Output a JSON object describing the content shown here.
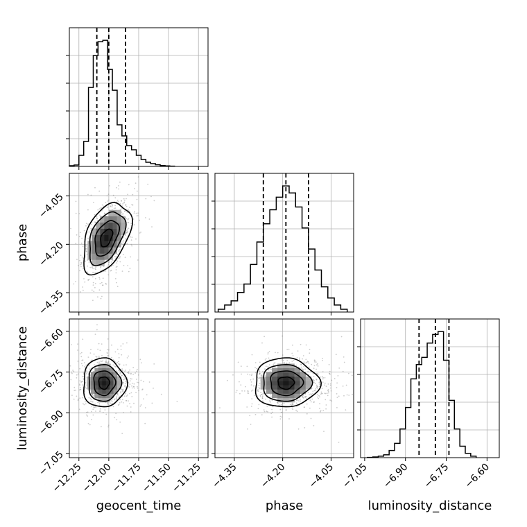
{
  "chart_data": {
    "type": "corner",
    "parameters": [
      "geocent_time",
      "phase",
      "luminosity_distance"
    ],
    "axis_labels": {
      "x": [
        "geocent_time",
        "phase",
        "luminosity_distance"
      ],
      "y": [
        "phase",
        "luminosity_distance"
      ]
    },
    "ranges": {
      "geocent_time": [
        -12.33,
        -11.17
      ],
      "phase": [
        -4.41,
        -3.98
      ],
      "luminosity_distance": [
        -7.065,
        -6.555
      ]
    },
    "ticks": {
      "geocent_time": [
        "−12.25",
        "−12.00",
        "−11.75",
        "−11.50",
        "−11.25"
      ],
      "geocent_time_values": [
        -12.25,
        -12.0,
        -11.75,
        -11.5,
        -11.25
      ],
      "phase": [
        "−4.35",
        "−4.20",
        "−4.05"
      ],
      "phase_values": [
        -4.35,
        -4.2,
        -4.05
      ],
      "luminosity_distance": [
        "−7.05",
        "−6.90",
        "−6.75",
        "−6.60"
      ],
      "luminosity_distance_values": [
        -7.05,
        -6.9,
        -6.75,
        -6.6
      ]
    },
    "quantiles": {
      "geocent_time": [
        -12.1,
        -12.0,
        -11.86
      ],
      "phase": [
        -4.26,
        -4.19,
        -4.12
      ],
      "luminosity_distance": [
        -6.85,
        -6.79,
        -6.74
      ]
    },
    "histograms": {
      "geocent_time": {
        "bin_edges": [
          -12.33,
          -12.29,
          -12.25,
          -12.21,
          -12.17,
          -12.13,
          -12.09,
          -12.05,
          -12.01,
          -11.97,
          -11.93,
          -11.89,
          -11.85,
          -11.81,
          -11.77,
          -11.73,
          -11.69,
          -11.65,
          -11.61,
          -11.57,
          -11.53,
          -11.49,
          -11.45
        ],
        "counts": [
          0.005,
          0.01,
          0.08,
          0.18,
          0.57,
          0.8,
          0.9,
          0.91,
          0.7,
          0.55,
          0.3,
          0.22,
          0.15,
          0.12,
          0.08,
          0.05,
          0.03,
          0.02,
          0.012,
          0.006,
          0.004,
          0.002
        ]
      },
      "phase": {
        "bin_edges": [
          -4.4,
          -4.38,
          -4.36,
          -4.34,
          -4.32,
          -4.3,
          -4.28,
          -4.26,
          -4.24,
          -4.22,
          -4.2,
          -4.18,
          -4.16,
          -4.14,
          -4.12,
          -4.1,
          -4.08,
          -4.06,
          -4.04,
          -4.02,
          -4.0
        ],
        "counts": [
          0.02,
          0.05,
          0.08,
          0.14,
          0.2,
          0.34,
          0.5,
          0.63,
          0.73,
          0.82,
          0.9,
          0.85,
          0.75,
          0.6,
          0.45,
          0.3,
          0.18,
          0.1,
          0.05,
          0.02
        ]
      },
      "luminosity_distance": {
        "bin_edges": [
          -7.04,
          -7.02,
          -7.0,
          -6.98,
          -6.96,
          -6.94,
          -6.92,
          -6.9,
          -6.88,
          -6.86,
          -6.84,
          -6.82,
          -6.8,
          -6.78,
          -6.76,
          -6.74,
          -6.72,
          -6.7,
          -6.68,
          -6.66,
          -6.64
        ],
        "counts": [
          0.002,
          0.005,
          0.01,
          0.02,
          0.05,
          0.1,
          0.2,
          0.35,
          0.55,
          0.65,
          0.7,
          0.8,
          0.86,
          0.88,
          0.68,
          0.4,
          0.2,
          0.08,
          0.03,
          0.01
        ]
      }
    },
    "joint": {
      "phase_vs_geocent_time": {
        "x_param": "geocent_time",
        "y_param": "phase",
        "mean": [
          -12.02,
          -4.18
        ],
        "std": [
          0.1,
          0.055
        ],
        "correlation": 0.45,
        "peak": [
          -12.05,
          -4.19
        ]
      },
      "luminosity_distance_vs_geocent_time": {
        "x_param": "geocent_time",
        "y_param": "luminosity_distance",
        "mean": [
          -12.04,
          -6.79
        ],
        "std": [
          0.09,
          0.045
        ],
        "correlation": 0.0,
        "peak": [
          -12.07,
          -6.79
        ]
      },
      "luminosity_distance_vs_phase": {
        "x_param": "phase",
        "y_param": "luminosity_distance",
        "mean": [
          -4.19,
          -6.79
        ],
        "std": [
          0.05,
          0.045
        ],
        "correlation": 0.0,
        "peak": [
          -4.2,
          -6.79
        ]
      }
    },
    "contour_levels_sigma": [
      0.5,
      1.0,
      1.5,
      2.0
    ],
    "grid": true,
    "colors": {
      "histogram": "#000000",
      "contour": "#000000",
      "points": "#8c8c8c",
      "grid": "#b0b0b0",
      "quantile_line": "#000000"
    }
  }
}
